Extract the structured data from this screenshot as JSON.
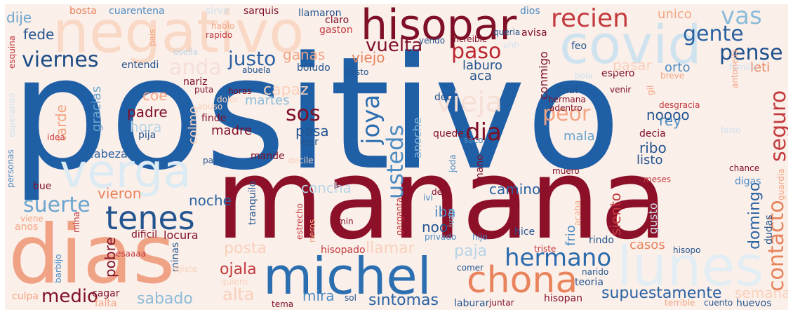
{
  "cloud": {
    "words": [
      {
        "text": "positivo",
        "color": "#1f5fa6"
      },
      {
        "text": "manana",
        "color": "#8c1028"
      },
      {
        "text": "dias",
        "color": "#f0a285"
      },
      {
        "text": "michel",
        "color": "#2c6fb0"
      },
      {
        "text": "hisopar",
        "color": "#7f0f26"
      },
      {
        "text": "covid",
        "color": "#cfe3ef"
      },
      {
        "text": "negativo",
        "color": "#f9d8c6"
      },
      {
        "text": "verga",
        "color": "#dcebf3"
      },
      {
        "text": "lunes",
        "color": "#e3eef4"
      },
      {
        "text": "chona",
        "color": "#e8835c"
      },
      {
        "text": "recien",
        "color": "#c33a3d"
      },
      {
        "text": "tenes",
        "color": "#24558f"
      },
      {
        "text": "hermano",
        "color": "#2b6aad"
      },
      {
        "text": "vieja",
        "color": "#f5dfd7"
      },
      {
        "text": "paso",
        "color": "#b9262f"
      },
      {
        "text": "gente",
        "color": "#2a62a2"
      },
      {
        "text": "pense",
        "color": "#1d508c"
      },
      {
        "text": "vas",
        "color": "#8bbcd9"
      },
      {
        "text": "dia",
        "color": "#7f0f26"
      },
      {
        "text": "viernes",
        "color": "#1c4d86"
      },
      {
        "text": "suerte",
        "color": "#6ba5cf"
      },
      {
        "text": "peor",
        "color": "#f4a482"
      },
      {
        "text": "sos",
        "color": "#7f0f26"
      },
      {
        "text": "justo",
        "color": "#2a62a2"
      },
      {
        "text": "vuelta",
        "color": "#7f0f26"
      },
      {
        "text": "usteds",
        "color": "#4a8bc2"
      },
      {
        "text": "joya",
        "color": "#2c6fb0"
      },
      {
        "text": "seguro",
        "color": "#c33a3d"
      },
      {
        "text": "contacto",
        "color": "#e8835c"
      },
      {
        "text": "supuestamente",
        "color": "#2a62a2"
      },
      {
        "text": "sintomas",
        "color": "#2a62a2"
      },
      {
        "text": "sabado",
        "color": "#8bbcd9"
      },
      {
        "text": "medio",
        "color": "#7f0f26"
      },
      {
        "text": "ojala",
        "color": "#c33a3d"
      },
      {
        "text": "noche",
        "color": "#2a62a2"
      },
      {
        "text": "camino",
        "color": "#2a62a2"
      },
      {
        "text": "domingo",
        "color": "#2a62a2"
      },
      {
        "text": "siento",
        "color": "#c33a3d"
      },
      {
        "text": "fede",
        "color": "#24558f"
      },
      {
        "text": "dije",
        "color": "#6ba5cf"
      },
      {
        "text": "anda",
        "color": "#f5dfd7"
      },
      {
        "text": "ganas",
        "color": "#f4a482"
      },
      {
        "text": "viejo",
        "color": "#e8835c"
      },
      {
        "text": "capaz",
        "color": "#f9d0bb"
      },
      {
        "text": "pasa",
        "color": "#24558f"
      },
      {
        "text": "madre",
        "color": "#7f0f26"
      },
      {
        "text": "padre",
        "color": "#7f0f26"
      },
      {
        "text": "tarde",
        "color": "#f4a482"
      },
      {
        "text": "gracias",
        "color": "#6ba5cf"
      },
      {
        "text": "martes",
        "color": "#8bbcd9"
      },
      {
        "text": "coe",
        "color": "#f4a482"
      },
      {
        "text": "hora",
        "color": "#b7d5e8"
      },
      {
        "text": "colmo",
        "color": "#f9d0bb"
      },
      {
        "text": "cabeza",
        "color": "#2a62a2"
      },
      {
        "text": "vieron",
        "color": "#e8835c"
      },
      {
        "text": "concha",
        "color": "#b7d5e8"
      },
      {
        "text": "posta",
        "color": "#f9d0bb"
      },
      {
        "text": "llamar",
        "color": "#f9d0bb"
      },
      {
        "text": "paja",
        "color": "#b7d5e8"
      },
      {
        "text": "iba",
        "color": "#4a8bc2"
      },
      {
        "text": "noo",
        "color": "#24558f"
      },
      {
        "text": "mira",
        "color": "#4a8bc2"
      },
      {
        "text": "alta",
        "color": "#f9d0bb"
      },
      {
        "text": "pobre",
        "color": "#7f0f26"
      },
      {
        "text": "locura",
        "color": "#7f0f26"
      },
      {
        "text": "casos",
        "color": "#e8835c"
      },
      {
        "text": "ribo",
        "color": "#24558f"
      },
      {
        "text": "listo",
        "color": "#24558f"
      },
      {
        "text": "noooo",
        "color": "#24558f"
      },
      {
        "text": "rey",
        "color": "#4a8bc2"
      },
      {
        "text": "mala",
        "color": "#6ba5cf"
      },
      {
        "text": "frio",
        "color": "#4a8bc2"
      },
      {
        "text": "anoche",
        "color": "#8bbcd9"
      },
      {
        "text": "aca",
        "color": "#24558f"
      },
      {
        "text": "laburo",
        "color": "#24558f"
      },
      {
        "text": "conmigo",
        "color": "#7f0f26"
      },
      {
        "text": "orto",
        "color": "#4a8bc2"
      },
      {
        "text": "leti",
        "color": "#e8835c"
      },
      {
        "text": "unico",
        "color": "#f4a482"
      },
      {
        "text": "llamaron",
        "color": "#24558f"
      },
      {
        "text": "sarquis",
        "color": "#7f0f26"
      },
      {
        "text": "cuarentena",
        "color": "#4a8bc2"
      },
      {
        "text": "bosta",
        "color": "#e8835c"
      },
      {
        "text": "sirve",
        "color": "#cfe3ef"
      },
      {
        "text": "claro",
        "color": "#7f0f26"
      },
      {
        "text": "gaston",
        "color": "#c33a3d"
      },
      {
        "text": "dios",
        "color": "#4a8bc2"
      },
      {
        "text": "avisa",
        "color": "#7f0f26"
      },
      {
        "text": "feo",
        "color": "#24558f"
      },
      {
        "text": "espero",
        "color": "#7f0f26"
      },
      {
        "text": "final",
        "color": "#24558f"
      },
      {
        "text": "venir",
        "color": "#7f0f26"
      },
      {
        "text": "deci",
        "color": "#24558f"
      },
      {
        "text": "decia",
        "color": "#7f0f26"
      },
      {
        "text": "quede",
        "color": "#7f0f26"
      },
      {
        "text": "mande",
        "color": "#7f0f26"
      },
      {
        "text": "leer",
        "color": "#24558f"
      },
      {
        "text": "pija",
        "color": "#24558f"
      },
      {
        "text": "finde",
        "color": "#7f0f26"
      },
      {
        "text": "horas",
        "color": "#7f0f26"
      },
      {
        "text": "nariz",
        "color": "#7f0f26"
      },
      {
        "text": "puta",
        "color": "#7f0f26"
      },
      {
        "text": "entendi",
        "color": "#24558f"
      },
      {
        "text": "abuela",
        "color": "#24558f"
      },
      {
        "text": "boludo",
        "color": "#24558f"
      },
      {
        "text": "resto",
        "color": "#24558f"
      },
      {
        "text": "papa",
        "color": "#24558f"
      },
      {
        "text": "idea",
        "color": "#c33a3d"
      },
      {
        "text": "bue",
        "color": "#7f0f26"
      },
      {
        "text": "dificil",
        "color": "#7f0f26"
      },
      {
        "text": "anos",
        "color": "#f4a482"
      },
      {
        "text": "cagar",
        "color": "#7f0f26"
      },
      {
        "text": "falta",
        "color": "#f4a482"
      },
      {
        "text": "culpa",
        "color": "#f4a482"
      },
      {
        "text": "tema",
        "color": "#7f0f26"
      },
      {
        "text": "sol",
        "color": "#24558f"
      },
      {
        "text": "laburar",
        "color": "#24558f"
      },
      {
        "text": "juntar",
        "color": "#7f0f26"
      },
      {
        "text": "hisopan",
        "color": "#7f0f26"
      },
      {
        "text": "terrible",
        "color": "#f4a482"
      },
      {
        "text": "cuento",
        "color": "#24558f"
      },
      {
        "text": "huevos",
        "color": "#24558f"
      },
      {
        "text": "teoria",
        "color": "#24558f"
      },
      {
        "text": "narido",
        "color": "#24558f"
      },
      {
        "text": "comer",
        "color": "#24558f"
      },
      {
        "text": "triste",
        "color": "#c33a3d"
      },
      {
        "text": "hisopo",
        "color": "#24558f"
      },
      {
        "text": "rindo",
        "color": "#24558f"
      },
      {
        "text": "hice",
        "color": "#24558f"
      },
      {
        "text": "hijo",
        "color": "#4a8bc2"
      },
      {
        "text": "privado",
        "color": "#4a8bc2"
      },
      {
        "text": "hisopado",
        "color": "#c33a3d"
      },
      {
        "text": "esaaaa",
        "color": "#c33a3d"
      },
      {
        "text": "den",
        "color": "#7f0f26"
      },
      {
        "text": "min",
        "color": "#7f0f26"
      },
      {
        "text": "tranquilo",
        "color": "#24558f"
      },
      {
        "text": "estrecho",
        "color": "#c33a3d"
      },
      {
        "text": "minas",
        "color": "#24558f"
      },
      {
        "text": "dudas",
        "color": "#24558f"
      },
      {
        "text": "digas",
        "color": "#4a8bc2"
      },
      {
        "text": "meses",
        "color": "#c33a3d"
      },
      {
        "text": "chance",
        "color": "#7f0f26"
      },
      {
        "text": "muero",
        "color": "#7f0f26"
      },
      {
        "text": "adentro",
        "color": "#7f0f26"
      },
      {
        "text": "hermana",
        "color": "#7f0f26"
      },
      {
        "text": "desgracia",
        "color": "#c33a3d"
      },
      {
        "text": "falso",
        "color": "#cfe3ef"
      },
      {
        "text": "gil",
        "color": "#f4a482"
      },
      {
        "text": "breve",
        "color": "#f4a482"
      },
      {
        "text": "familia",
        "color": "#cfe3ef"
      },
      {
        "text": "bola",
        "color": "#cfe3ef"
      },
      {
        "text": "mano",
        "color": "#7f0f26"
      },
      {
        "text": "joda",
        "color": "#4a8bc2"
      },
      {
        "text": "saco",
        "color": "#4a8bc2"
      },
      {
        "text": "ivi",
        "color": "#4a8bc2"
      },
      {
        "text": "ivan",
        "color": "#8bbcd9"
      },
      {
        "text": "garganta",
        "color": "#c33a3d"
      },
      {
        "text": "acaba",
        "color": "#f4a482"
      },
      {
        "text": "gusto",
        "color": "#cfe3ef"
      },
      {
        "text": "yendo",
        "color": "#24558f"
      },
      {
        "text": "increible",
        "color": "#7f0f26"
      },
      {
        "text": "queria",
        "color": "#24558f"
      },
      {
        "text": "uhh",
        "color": "#cfe3ef"
      },
      {
        "text": "rapido",
        "color": "#c33a3d"
      },
      {
        "text": "hablo",
        "color": "#f4a482"
      },
      {
        "text": "pais",
        "color": "#f4a482"
      },
      {
        "text": "osella",
        "color": "#b7d5e8"
      },
      {
        "text": "esquina",
        "color": "#c33a3d"
      },
      {
        "text": "esperando",
        "color": "#cfe3ef"
      },
      {
        "text": "personas",
        "color": "#4a8bc2"
      },
      {
        "text": "viene",
        "color": "#f4a482"
      },
      {
        "text": "mina",
        "color": "#c33a3d"
      },
      {
        "text": "barbijo",
        "color": "#4a8bc2"
      },
      {
        "text": "dijiste",
        "color": "#f9d0bb"
      },
      {
        "text": "quiero",
        "color": "#f9d0bb"
      },
      {
        "text": "neros",
        "color": "#f4a482"
      },
      {
        "text": "dolor",
        "color": "#f9d0bb"
      },
      {
        "text": "abuso",
        "color": "#f9d0bb"
      },
      {
        "text": "decile",
        "color": "#f9d0bb"
      },
      {
        "text": "antonella",
        "color": "#f4a482"
      },
      {
        "text": "guardia",
        "color": "#f4a482"
      },
      {
        "text": "pasar",
        "color": "#f9d0bb"
      },
      {
        "text": "semana",
        "color": "#f9d0bb"
      }
    ]
  }
}
